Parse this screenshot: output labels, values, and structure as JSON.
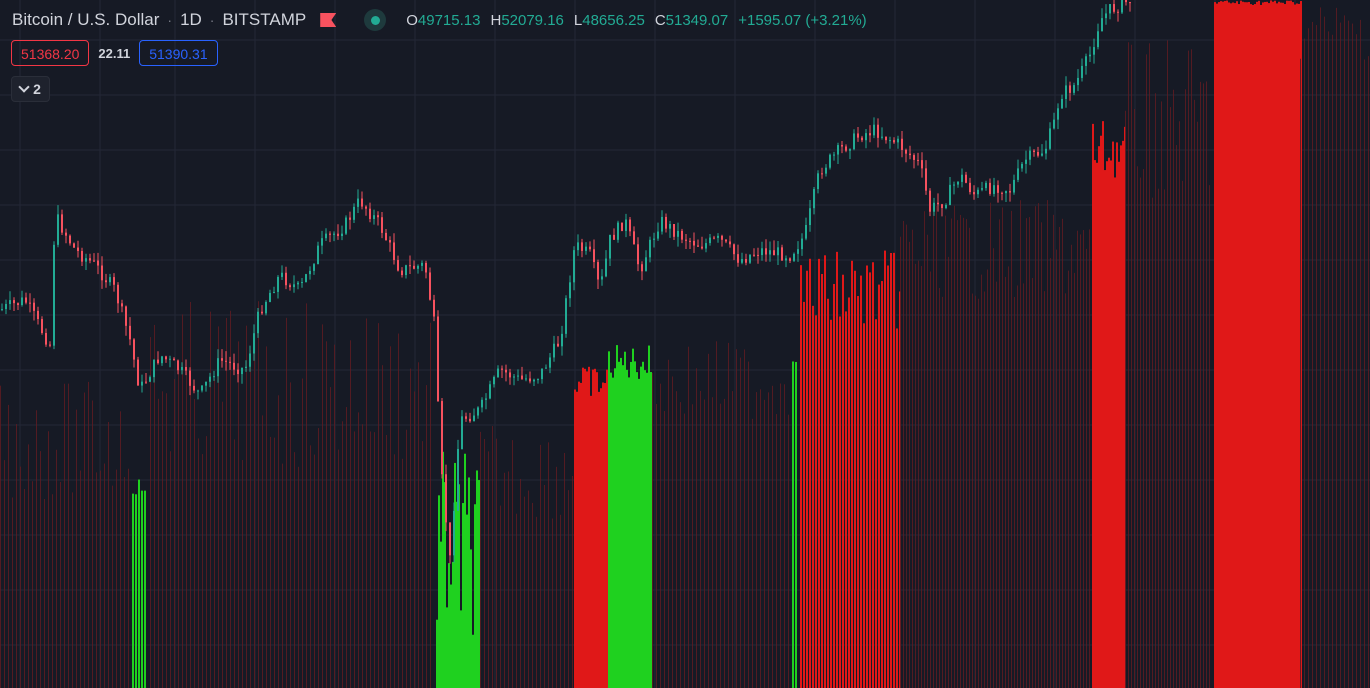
{
  "symbol": {
    "name": "Bitcoin / U.S. Dollar",
    "interval": "1D",
    "exchange": "BITSTAMP",
    "separator": "·"
  },
  "ohlc": {
    "open_label": "O",
    "open": "49715.13",
    "high_label": "H",
    "high": "52079.16",
    "low_label": "L",
    "low": "48656.25",
    "close_label": "C",
    "close": "51349.07",
    "change": "+1595.07 (+3.21%)"
  },
  "quote": {
    "bid": "51368.20",
    "spread": "22.11",
    "ask": "51390.31"
  },
  "indicators_toggle": {
    "count": "2"
  },
  "icons": {
    "flag": "flag-icon",
    "status": "market-open-dot-icon",
    "collapse": "chevron-down-icon"
  },
  "colors": {
    "background": "#161a25",
    "grid": "#242836",
    "candle_up": "#22ab94",
    "candle_down": "#f7525f",
    "volume_green": "#1fd11f",
    "volume_red": "#e01818",
    "volume_red_dim": "#5a1c22",
    "bid": "#f23645",
    "ask": "#2962ff"
  }
}
